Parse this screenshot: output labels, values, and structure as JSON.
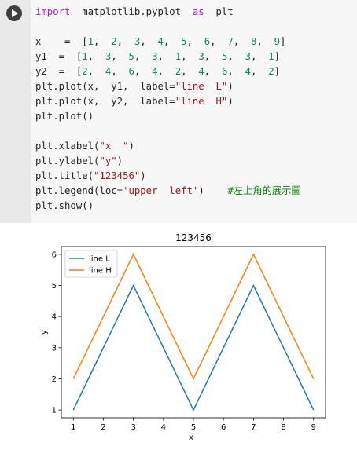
{
  "code": {
    "lines": [
      [
        {
          "t": "import",
          "c": "kw"
        },
        {
          "t": "  matplotlib.pyplot  "
        },
        {
          "t": "as",
          "c": "kw"
        },
        {
          "t": "  plt"
        }
      ],
      [],
      [
        {
          "t": "x    =  ["
        },
        {
          "t": "1",
          "c": "num"
        },
        {
          "t": ",  "
        },
        {
          "t": "2",
          "c": "num"
        },
        {
          "t": ",  "
        },
        {
          "t": "3",
          "c": "num"
        },
        {
          "t": ",  "
        },
        {
          "t": "4",
          "c": "num"
        },
        {
          "t": ",  "
        },
        {
          "t": "5",
          "c": "num"
        },
        {
          "t": ",  "
        },
        {
          "t": "6",
          "c": "num"
        },
        {
          "t": ",  "
        },
        {
          "t": "7",
          "c": "num"
        },
        {
          "t": ",  "
        },
        {
          "t": "8",
          "c": "num"
        },
        {
          "t": ",  "
        },
        {
          "t": "9",
          "c": "num"
        },
        {
          "t": "]"
        }
      ],
      [
        {
          "t": "y1  =  ["
        },
        {
          "t": "1",
          "c": "num"
        },
        {
          "t": ",  "
        },
        {
          "t": "3",
          "c": "num"
        },
        {
          "t": ",  "
        },
        {
          "t": "5",
          "c": "num"
        },
        {
          "t": ",  "
        },
        {
          "t": "3",
          "c": "num"
        },
        {
          "t": ",  "
        },
        {
          "t": "1",
          "c": "num"
        },
        {
          "t": ",  "
        },
        {
          "t": "3",
          "c": "num"
        },
        {
          "t": ",  "
        },
        {
          "t": "5",
          "c": "num"
        },
        {
          "t": ",  "
        },
        {
          "t": "3",
          "c": "num"
        },
        {
          "t": ",  "
        },
        {
          "t": "1",
          "c": "num"
        },
        {
          "t": "]"
        }
      ],
      [
        {
          "t": "y2  =  ["
        },
        {
          "t": "2",
          "c": "num"
        },
        {
          "t": ",  "
        },
        {
          "t": "4",
          "c": "num"
        },
        {
          "t": ",  "
        },
        {
          "t": "6",
          "c": "num"
        },
        {
          "t": ",  "
        },
        {
          "t": "4",
          "c": "num"
        },
        {
          "t": ",  "
        },
        {
          "t": "2",
          "c": "num"
        },
        {
          "t": ",  "
        },
        {
          "t": "4",
          "c": "num"
        },
        {
          "t": ",  "
        },
        {
          "t": "6",
          "c": "num"
        },
        {
          "t": ",  "
        },
        {
          "t": "4",
          "c": "num"
        },
        {
          "t": ",  "
        },
        {
          "t": "2",
          "c": "num"
        },
        {
          "t": "]"
        }
      ],
      [
        {
          "t": "plt.plot(x,  y1,  label="
        },
        {
          "t": "\"line  L\"",
          "c": "str"
        },
        {
          "t": ")"
        }
      ],
      [
        {
          "t": "plt.plot(x,  y2,  label="
        },
        {
          "t": "\"line  H\"",
          "c": "str"
        },
        {
          "t": ")"
        }
      ],
      [
        {
          "t": "plt.plot()"
        }
      ],
      [],
      [
        {
          "t": "plt.xlabel("
        },
        {
          "t": "\"x  \"",
          "c": "str"
        },
        {
          "t": ")"
        }
      ],
      [
        {
          "t": "plt.ylabel("
        },
        {
          "t": "\"y\"",
          "c": "str"
        },
        {
          "t": ")"
        }
      ],
      [
        {
          "t": "plt.title("
        },
        {
          "t": "\"123456\"",
          "c": "str"
        },
        {
          "t": ")"
        }
      ],
      [
        {
          "t": "plt.legend(loc="
        },
        {
          "t": "'upper  left'",
          "c": "str"
        },
        {
          "t": ")    "
        },
        {
          "t": "#左上角的展示圖",
          "c": "cmt"
        }
      ],
      [
        {
          "t": "plt.show()"
        }
      ]
    ]
  },
  "colors": {
    "series_L": "#1f77b4",
    "series_H": "#ff7f0e",
    "keyword": "#9c27b0",
    "number": "#098658",
    "string": "#a31515",
    "comment": "#008000"
  },
  "run_button_icon": "play-icon",
  "chart_data": {
    "type": "line",
    "title": "123456",
    "xlabel": "x",
    "ylabel": "y",
    "x": [
      1,
      2,
      3,
      4,
      5,
      6,
      7,
      8,
      9
    ],
    "series": [
      {
        "name": "line L",
        "values": [
          1,
          3,
          5,
          3,
          1,
          3,
          5,
          3,
          1
        ]
      },
      {
        "name": "line H",
        "values": [
          2,
          4,
          6,
          4,
          2,
          4,
          6,
          4,
          2
        ]
      }
    ],
    "xlim": [
      0.6,
      9.4
    ],
    "ylim": [
      0.75,
      6.25
    ],
    "xticks": [
      1,
      2,
      3,
      4,
      5,
      6,
      7,
      8,
      9
    ],
    "yticks": [
      1,
      2,
      3,
      4,
      5,
      6
    ],
    "legend": "upper-left",
    "grid": false
  }
}
